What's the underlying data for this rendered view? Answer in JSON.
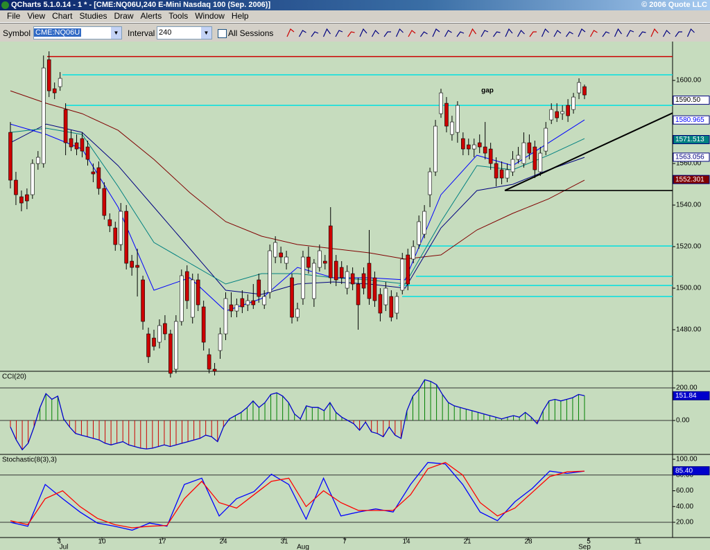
{
  "window": {
    "title": "QCharts 5.1.0.14 - 1 * - [CME:NQ06U,240 E-Mini Nasdaq 100 (Sep. 2006)]",
    "copyright": "© 2006 Quote LLC"
  },
  "menu": [
    "File",
    "View",
    "Chart",
    "Studies",
    "Draw",
    "Alerts",
    "Tools",
    "Window",
    "Help"
  ],
  "toolbar": {
    "symbol_label": "Symbol",
    "symbol": "CME:NQ06U",
    "interval_label": "Interval",
    "interval": "240",
    "sessions": "All Sessions"
  },
  "x_axis": {
    "days": [
      "3",
      "10",
      "17",
      "24",
      "31",
      "7",
      "14",
      "21",
      "28",
      "5",
      "11"
    ],
    "months": [
      "Jul",
      "Aug",
      "Sep"
    ]
  },
  "chart_data": [
    {
      "type": "candlestick",
      "annotation": "gap",
      "ylim": [
        1460,
        1618.7
      ],
      "yticks": [
        {
          "value": 1480,
          "label": "1480.00"
        },
        {
          "value": 1500,
          "label": "1500.00"
        },
        {
          "value": 1520,
          "label": "1520.00"
        },
        {
          "value": 1540,
          "label": "1540.00"
        },
        {
          "value": 1560,
          "label": "1560.00"
        },
        {
          "value": 1580,
          "label": "1580.00"
        },
        {
          "value": 1600,
          "label": "1600.00"
        }
      ],
      "up_color": "#ffffff",
      "down_color": "#cc0000",
      "candles": [
        [
          1575,
          1580,
          1548,
          1552
        ],
        [
          1552,
          1556,
          1540,
          1545
        ],
        [
          1544,
          1547,
          1537,
          1541
        ],
        [
          1545,
          1548,
          1538,
          1542
        ],
        [
          1545,
          1562,
          1543,
          1560
        ],
        [
          1560,
          1566,
          1557,
          1563
        ],
        [
          1560,
          1612,
          1558,
          1606
        ],
        [
          1610,
          1614,
          1592,
          1595
        ],
        [
          1596,
          1599,
          1591,
          1594
        ],
        [
          1597,
          1604,
          1595,
          1601
        ],
        [
          1586,
          1589,
          1564,
          1570
        ],
        [
          1572,
          1576,
          1566,
          1568
        ],
        [
          1570,
          1574,
          1564,
          1567
        ],
        [
          1572,
          1575,
          1563,
          1566
        ],
        [
          1568,
          1571,
          1559,
          1562
        ],
        [
          1556,
          1560,
          1551,
          1555
        ],
        [
          1558,
          1561,
          1545,
          1548
        ],
        [
          1548,
          1551,
          1533,
          1535
        ],
        [
          1533,
          1536,
          1527,
          1530
        ],
        [
          1529,
          1532,
          1518,
          1521
        ],
        [
          1521,
          1541,
          1518,
          1537
        ],
        [
          1537,
          1540,
          1509,
          1512
        ],
        [
          1513,
          1516,
          1506,
          1510
        ],
        [
          1511,
          1519,
          1496,
          1510
        ],
        [
          1504,
          1506,
          1480,
          1484
        ],
        [
          1478,
          1481,
          1464,
          1467
        ],
        [
          1476,
          1480,
          1470,
          1472
        ],
        [
          1474,
          1485,
          1471,
          1482
        ],
        [
          1483,
          1487,
          1475,
          1478
        ],
        [
          1478,
          1480,
          1457,
          1459
        ],
        [
          1461,
          1487,
          1459,
          1484
        ],
        [
          1484,
          1509,
          1482,
          1506
        ],
        [
          1508,
          1511,
          1490,
          1494
        ],
        [
          1486,
          1507,
          1483,
          1504
        ],
        [
          1504,
          1507,
          1489,
          1492
        ],
        [
          1491,
          1494,
          1470,
          1474
        ],
        [
          1468,
          1471,
          1459,
          1461
        ],
        [
          1461,
          1464,
          1458,
          1460
        ],
        [
          1470,
          1481,
          1466,
          1478
        ],
        [
          1478,
          1498,
          1475,
          1495
        ],
        [
          1492,
          1498,
          1486,
          1489
        ],
        [
          1489,
          1495,
          1486,
          1492
        ],
        [
          1495,
          1499,
          1488,
          1491
        ],
        [
          1492,
          1497,
          1489,
          1494
        ],
        [
          1494,
          1502,
          1490,
          1492
        ],
        [
          1504,
          1507,
          1493,
          1496
        ],
        [
          1492,
          1499,
          1490,
          1496
        ],
        [
          1498,
          1521,
          1495,
          1518
        ],
        [
          1515,
          1525,
          1512,
          1522
        ],
        [
          1517,
          1520,
          1512,
          1515
        ],
        [
          1512,
          1518,
          1509,
          1515
        ],
        [
          1505,
          1507,
          1483,
          1486
        ],
        [
          1486,
          1493,
          1484,
          1490
        ],
        [
          1495,
          1518,
          1492,
          1515
        ],
        [
          1515,
          1520,
          1507,
          1510
        ],
        [
          1495,
          1514,
          1491,
          1512
        ],
        [
          1510,
          1521,
          1508,
          1518
        ],
        [
          1513,
          1516,
          1509,
          1512
        ],
        [
          1530,
          1539,
          1502,
          1505
        ],
        [
          1513,
          1516,
          1501,
          1504
        ],
        [
          1510,
          1513,
          1502,
          1505
        ],
        [
          1500,
          1511,
          1497,
          1508
        ],
        [
          1507,
          1510,
          1499,
          1502
        ],
        [
          1502,
          1505,
          1480,
          1492
        ],
        [
          1507,
          1510,
          1497,
          1500
        ],
        [
          1512,
          1528,
          1492,
          1495
        ],
        [
          1505,
          1508,
          1491,
          1494
        ],
        [
          1497,
          1500,
          1484,
          1488
        ],
        [
          1492,
          1503,
          1489,
          1500
        ],
        [
          1496,
          1499,
          1484,
          1486
        ],
        [
          1488,
          1498,
          1485,
          1496
        ],
        [
          1499,
          1517,
          1497,
          1514
        ],
        [
          1516,
          1519,
          1499,
          1502
        ],
        [
          1514,
          1523,
          1512,
          1520
        ],
        [
          1521,
          1535,
          1519,
          1532
        ],
        [
          1526,
          1540,
          1524,
          1537
        ],
        [
          1545,
          1558,
          1539,
          1556
        ],
        [
          1556,
          1581,
          1554,
          1578
        ],
        [
          1584,
          1596,
          1582,
          1594
        ],
        [
          1589,
          1592,
          1575,
          1578
        ],
        [
          1574,
          1583,
          1571,
          1580
        ],
        [
          1575,
          1590,
          1570,
          1588
        ],
        [
          1572,
          1575,
          1564,
          1567
        ],
        [
          1569,
          1572,
          1564,
          1567
        ],
        [
          1567,
          1572,
          1563,
          1569
        ],
        [
          1570,
          1574,
          1565,
          1568
        ],
        [
          1568,
          1580,
          1562,
          1565
        ],
        [
          1567,
          1570,
          1557,
          1560
        ],
        [
          1560,
          1563,
          1549,
          1553
        ],
        [
          1557,
          1561,
          1550,
          1553
        ],
        [
          1553,
          1560,
          1551,
          1557
        ],
        [
          1556,
          1566,
          1554,
          1562
        ],
        [
          1562,
          1568,
          1560,
          1564
        ],
        [
          1560,
          1575,
          1558,
          1570
        ],
        [
          1570,
          1574,
          1562,
          1565
        ],
        [
          1568,
          1571,
          1553,
          1557
        ],
        [
          1556,
          1568,
          1554,
          1565
        ],
        [
          1566,
          1580,
          1564,
          1577
        ],
        [
          1581,
          1589,
          1579,
          1586
        ],
        [
          1585,
          1589,
          1580,
          1582
        ],
        [
          1584,
          1588,
          1581,
          1585
        ],
        [
          1588,
          1591,
          1580,
          1583
        ],
        [
          1586,
          1594,
          1584,
          1592
        ],
        [
          1594,
          1601,
          1591,
          1599
        ],
        [
          1597,
          1598,
          1591,
          1593
        ]
      ],
      "series": [
        {
          "color": "#800000",
          "values": [
            1595,
            1589,
            1584,
            1576,
            1562,
            1546,
            1532,
            1525,
            1521,
            1519,
            1517,
            1514,
            1516,
            1528,
            1536,
            1543,
            1552
          ]
        },
        {
          "color": "#000080",
          "values": [
            1570,
            1579,
            1575,
            1559,
            1539,
            1519,
            1499,
            1497,
            1502,
            1503,
            1502,
            1500,
            1529,
            1547,
            1550,
            1557,
            1563
          ]
        },
        {
          "color": "#008080",
          "values": [
            1575,
            1577,
            1574,
            1549,
            1522,
            1512,
            1502,
            1507,
            1507,
            1505,
            1504,
            1502,
            1532,
            1559,
            1557,
            1564,
            1572
          ]
        },
        {
          "color": "#0000ff",
          "values": [
            1579,
            1574,
            1567,
            1539,
            1499,
            1505,
            1489,
            1495,
            1510,
            1505,
            1505,
            1504,
            1545,
            1564,
            1559,
            1570,
            1581
          ]
        }
      ],
      "levels": [
        {
          "value": 1611.5,
          "color": "#cc0000"
        },
        {
          "value": 1602.7,
          "color": "#00e0e0"
        },
        {
          "value": 1588,
          "color": "#00e0e0"
        },
        {
          "value": 1520.3,
          "color": "#00e0e0"
        },
        {
          "value": 1505.7,
          "color": "#00e0e0"
        },
        {
          "value": 1501.3,
          "color": "#00e0e0"
        },
        {
          "value": 1496,
          "color": "#00e0e0"
        }
      ],
      "support": 1547,
      "trendline": [
        1547,
        1584.3
      ],
      "price_labels": [
        {
          "value": 1590.5,
          "label": "1590.50",
          "color": "#ffffff",
          "text_color": "#000000"
        },
        {
          "value": 1580.965,
          "label": "1580.965",
          "color": "#ffffff",
          "text_color": "#0000ff"
        },
        {
          "value": 1571.513,
          "label": "1571.513",
          "color": "#008080",
          "text_color": "#ffffff"
        },
        {
          "value": 1563.056,
          "label": "1563.056",
          "color": "#ffffff",
          "text_color": "#000080"
        },
        {
          "value": 1552.301,
          "label": "1552.301",
          "color": "#800000",
          "text_color": "#ffffff"
        }
      ]
    },
    {
      "type": "bar-line",
      "title": "CCI(20)",
      "ylim": [
        -208.5,
        297.9
      ],
      "yticks": [
        {
          "value": 0,
          "label": "0.00"
        },
        {
          "value": 200,
          "label": "200.00"
        }
      ],
      "up_color": "#008000",
      "down_color": "#cc0000",
      "line_color": "#0000cc",
      "values": [
        -40,
        -120,
        -180,
        -140,
        -40,
        80,
        165,
        130,
        150,
        10,
        -40,
        -80,
        -90,
        -100,
        -110,
        -120,
        -140,
        -150,
        -140,
        -130,
        -150,
        -160,
        -170,
        -175,
        -170,
        -160,
        -150,
        -160,
        -150,
        -140,
        -130,
        -120,
        -110,
        -90,
        -100,
        -130,
        -40,
        10,
        30,
        50,
        80,
        120,
        80,
        110,
        160,
        170,
        150,
        110,
        40,
        10,
        90,
        80,
        80,
        60,
        110,
        50,
        20,
        0,
        -20,
        -60,
        -10,
        -70,
        -80,
        -100,
        -40,
        -90,
        -110,
        60,
        150,
        190,
        250,
        240,
        220,
        160,
        110,
        90,
        80,
        70,
        60,
        50,
        40,
        30,
        20,
        10,
        20,
        30,
        20,
        50,
        20,
        -20,
        60,
        120,
        130,
        120,
        130,
        140,
        160,
        152
      ],
      "last": {
        "value": 151.84,
        "label": "151.84",
        "color": "#0000cc"
      }
    },
    {
      "type": "line",
      "title": "Stochastic(8(3),3)",
      "ylim": [
        0.66,
        105.3
      ],
      "yticks": [
        {
          "value": 20,
          "label": "20.00"
        },
        {
          "value": 40,
          "label": "40.00"
        },
        {
          "value": 60,
          "label": "60.00"
        },
        {
          "value": 80,
          "label": "80.00"
        },
        {
          "value": 100,
          "label": "100.00"
        }
      ],
      "guides": [
        20,
        80
      ],
      "series": [
        {
          "color": "#0000ff",
          "values": [
            20,
            15,
            68,
            50,
            33,
            19,
            15,
            10,
            19,
            15,
            68,
            76,
            28,
            50,
            59,
            81,
            68,
            24,
            76,
            28,
            33,
            37,
            33,
            68,
            96,
            94,
            68,
            33,
            22,
            46,
            63,
            85,
            82,
            85
          ]
        },
        {
          "color": "#ff0000",
          "values": [
            22,
            17,
            50,
            60,
            40,
            25,
            17,
            13,
            15,
            16,
            50,
            72,
            45,
            38,
            55,
            72,
            76,
            40,
            60,
            45,
            35,
            35,
            35,
            55,
            88,
            96,
            80,
            45,
            28,
            38,
            58,
            78,
            84,
            85
          ]
        }
      ],
      "last": {
        "value": 85.4,
        "label": "85.40",
        "color": "#0000cc"
      }
    }
  ]
}
